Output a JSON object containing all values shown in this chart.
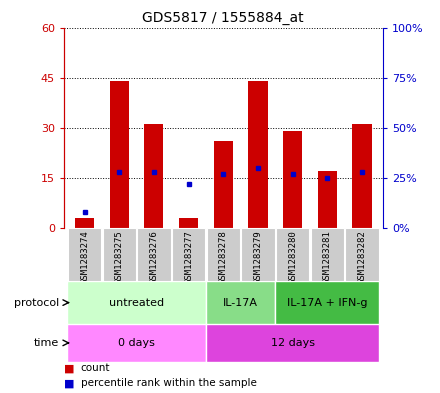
{
  "title": "GDS5817 / 1555884_at",
  "samples": [
    "GSM1283274",
    "GSM1283275",
    "GSM1283276",
    "GSM1283277",
    "GSM1283278",
    "GSM1283279",
    "GSM1283280",
    "GSM1283281",
    "GSM1283282"
  ],
  "counts": [
    3,
    44,
    31,
    3,
    26,
    44,
    29,
    17,
    31
  ],
  "percentiles": [
    8,
    28,
    28,
    22,
    27,
    30,
    27,
    25,
    28
  ],
  "ylim_left": [
    0,
    60
  ],
  "ylim_right": [
    0,
    100
  ],
  "yticks_left": [
    0,
    15,
    30,
    45,
    60
  ],
  "ytick_labels_left": [
    "0",
    "15",
    "30",
    "45",
    "60"
  ],
  "ytick_labels_right": [
    "0%",
    "25%",
    "50%",
    "75%",
    "100%"
  ],
  "yticks_right": [
    0,
    25,
    50,
    75,
    100
  ],
  "bar_color": "#cc0000",
  "percentile_color": "#0000cc",
  "left_axis_color": "#cc0000",
  "right_axis_color": "#0000cc",
  "protocol_groups": [
    {
      "label": "untreated",
      "start": 0,
      "end": 4,
      "color": "#ccffcc"
    },
    {
      "label": "IL-17A",
      "start": 4,
      "end": 6,
      "color": "#88dd88"
    },
    {
      "label": "IL-17A + IFN-g",
      "start": 6,
      "end": 9,
      "color": "#44bb44"
    }
  ],
  "time_groups": [
    {
      "label": "0 days",
      "start": 0,
      "end": 4,
      "color": "#ff88ff"
    },
    {
      "label": "12 days",
      "start": 4,
      "end": 9,
      "color": "#dd44dd"
    }
  ],
  "protocol_label": "protocol",
  "time_label": "time",
  "legend_count_label": "count",
  "legend_percentile_label": "percentile rank within the sample",
  "sample_col_color": "#cccccc",
  "grid_color": "#000000"
}
